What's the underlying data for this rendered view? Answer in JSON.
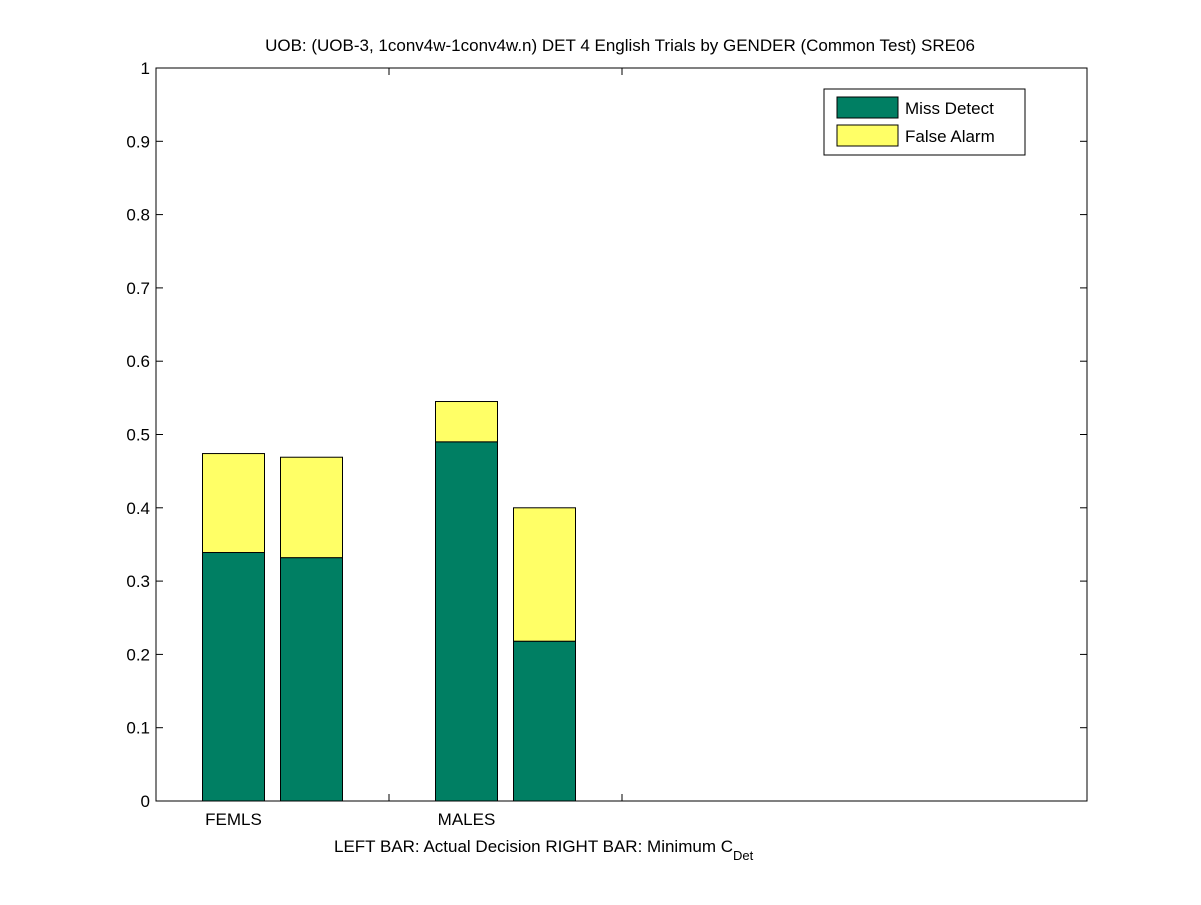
{
  "chart_data": {
    "type": "bar",
    "stacked": true,
    "title": "UOB: (UOB-3, 1conv4w-1conv4w.n) DET 4 English Trials by GENDER (Common Test) SRE06",
    "xlabel_main": "LEFT BAR: Actual Decision      RIGHT BAR: Minimum C",
    "xlabel_sub": "Det",
    "ylim": [
      0,
      1
    ],
    "yticks": [
      "0",
      "0.1",
      "0.2",
      "0.3",
      "0.4",
      "0.5",
      "0.6",
      "0.7",
      "0.8",
      "0.9",
      "1"
    ],
    "categories": [
      "FEMLS",
      "MALES"
    ],
    "legend": {
      "placement": "top-right"
    },
    "series": [
      {
        "name": "Miss Detect",
        "color": "#007f63",
        "values": [
          [
            0.339,
            0.332
          ],
          [
            0.49,
            0.218
          ]
        ]
      },
      {
        "name": "False Alarm",
        "color": "#ffff66",
        "values": [
          [
            0.135,
            0.137
          ],
          [
            0.055,
            0.182
          ]
        ]
      }
    ]
  }
}
